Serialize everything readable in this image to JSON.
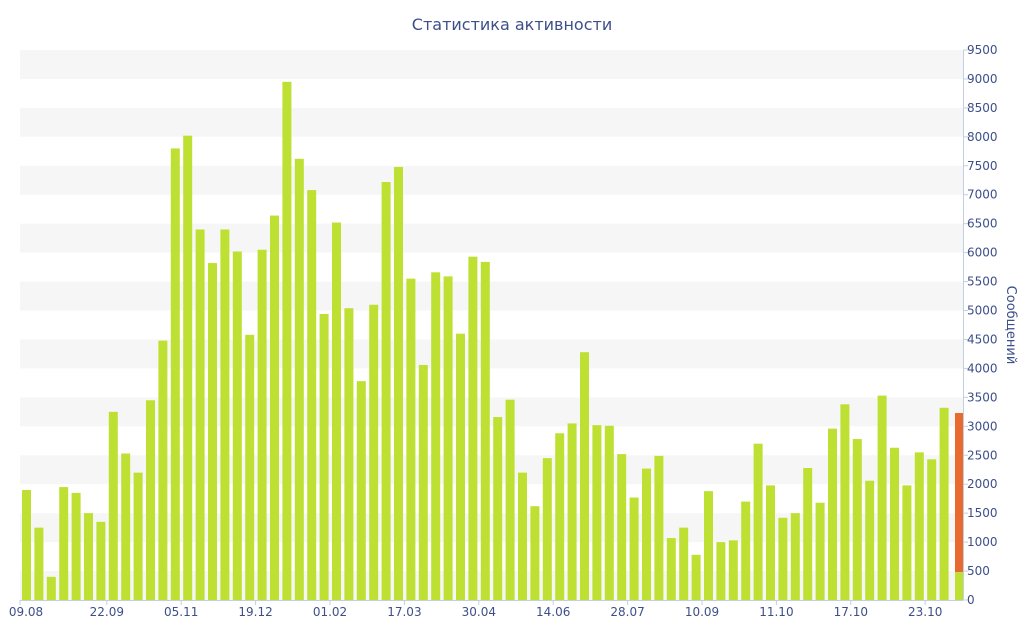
{
  "chart_data": {
    "type": "bar",
    "title": "Статистика активности",
    "ylabel": "Сообщений",
    "ylim": [
      0,
      9500
    ],
    "yticks": [
      0,
      500,
      1000,
      1500,
      2000,
      2500,
      3000,
      3500,
      4000,
      4500,
      5000,
      5500,
      6000,
      6500,
      7000,
      7500,
      8000,
      8500,
      9000,
      9500
    ],
    "y_axis_side": "right",
    "grid": "alternating horizontal bands",
    "xticks": [
      {
        "label": "09.08",
        "index": 0
      },
      {
        "label": "22.09",
        "index": 7
      },
      {
        "label": "05.11",
        "index": 13
      },
      {
        "label": "19.12",
        "index": 19
      },
      {
        "label": "01.02",
        "index": 25
      },
      {
        "label": "17.03",
        "index": 31
      },
      {
        "label": "30.04",
        "index": 37
      },
      {
        "label": "14.06",
        "index": 43
      },
      {
        "label": "28.07",
        "index": 49
      },
      {
        "label": "10.09",
        "index": 55
      },
      {
        "label": "11.10",
        "index": 61
      },
      {
        "label": "17.10",
        "index": 67
      },
      {
        "label": "23.10",
        "index": 73
      }
    ],
    "series": [
      {
        "values": [
          1900,
          1250,
          400,
          1950,
          1850,
          1500,
          1350,
          3250,
          2530,
          2200,
          3450,
          4480,
          7800,
          8020,
          6400,
          5820,
          6400,
          6020,
          4580,
          6050,
          6640,
          8950,
          7620,
          7080,
          4940,
          6520,
          5040,
          3780,
          5100,
          7220,
          7480,
          5550,
          4060,
          5660,
          5590,
          4600,
          5930,
          5840,
          3160,
          3460,
          2200,
          1620,
          2450,
          2880,
          3050,
          4280,
          3020,
          3010,
          2520,
          1770,
          2270,
          2490,
          1070,
          1250,
          780,
          1880,
          1000,
          1030,
          1700,
          2700,
          1980,
          1420,
          1500,
          2280,
          1680,
          2960,
          3380,
          2780,
          2060,
          3530,
          2630,
          1980,
          2550,
          2430,
          3320
        ],
        "color": "#bde033"
      }
    ],
    "current": {
      "value_low": 480,
      "value_high": 3230,
      "color": "#e86a2e"
    }
  }
}
